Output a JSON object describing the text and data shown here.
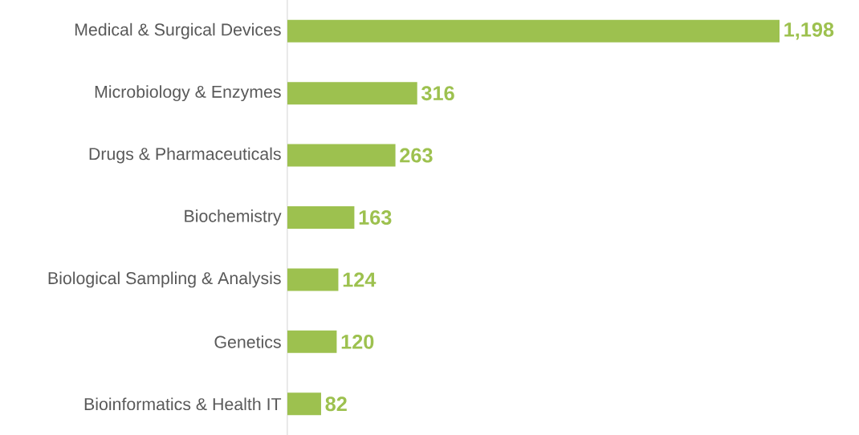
{
  "chart_data": {
    "type": "bar",
    "orientation": "horizontal",
    "categories": [
      "Medical & Surgical Devices",
      "Microbiology & Enzymes",
      "Drugs & Pharmaceuticals",
      "Biochemistry",
      "Biological Sampling & Analysis",
      "Genetics",
      "Bioinformatics & Health IT"
    ],
    "values": [
      1198,
      316,
      263,
      163,
      124,
      120,
      82
    ],
    "value_labels": [
      "1,198",
      "316",
      "263",
      "163",
      "124",
      "120",
      "82"
    ],
    "color": "#9dc14f"
  }
}
